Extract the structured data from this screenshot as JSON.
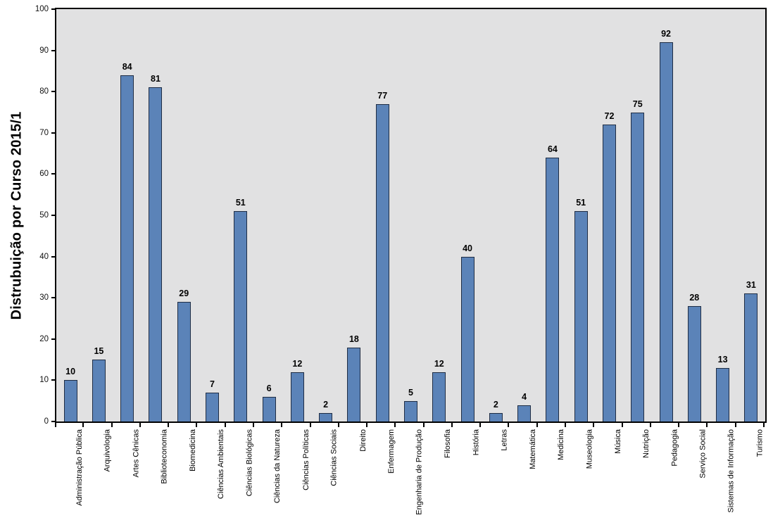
{
  "chart_data": {
    "type": "bar",
    "title": "Distrubuição por Curso 2015/1",
    "categories": [
      "Administração Pública",
      "Arquivologia",
      "Artes Cênicas",
      "Biblioteconomia",
      "Biomedicina",
      "Ciências Ambientais",
      "Ciências Biológicas",
      "Ciências da Natureza",
      "Ciências Políticas",
      "Ciências Sociais",
      "Direito",
      "Enfermagem",
      "Engenharia de Produção",
      "Filosofia",
      "História",
      "Letras",
      "Matemática",
      "Medicina",
      "Museologia",
      "Música",
      "Nutrição",
      "Pedagogia",
      "Serviço Social",
      "Sistemas de Informação",
      "Turismo"
    ],
    "values": [
      10,
      15,
      84,
      81,
      29,
      7,
      51,
      6,
      12,
      2,
      18,
      77,
      5,
      12,
      40,
      2,
      4,
      64,
      51,
      72,
      75,
      92,
      28,
      13,
      31
    ],
    "yticks": [
      0,
      10,
      20,
      30,
      40,
      50,
      60,
      70,
      80,
      90,
      100
    ],
    "ylim": [
      0,
      100
    ],
    "xlabel": "",
    "ylabel": "Distrubuição por Curso 2015/1",
    "grid": false,
    "legend": false,
    "value_labels": true,
    "colors": {
      "bar_fill": "#5B83B8",
      "bar_border": "#1F2D44",
      "plot_background": "#E1E1E2",
      "axis": "#000000",
      "text": "#000000"
    }
  }
}
